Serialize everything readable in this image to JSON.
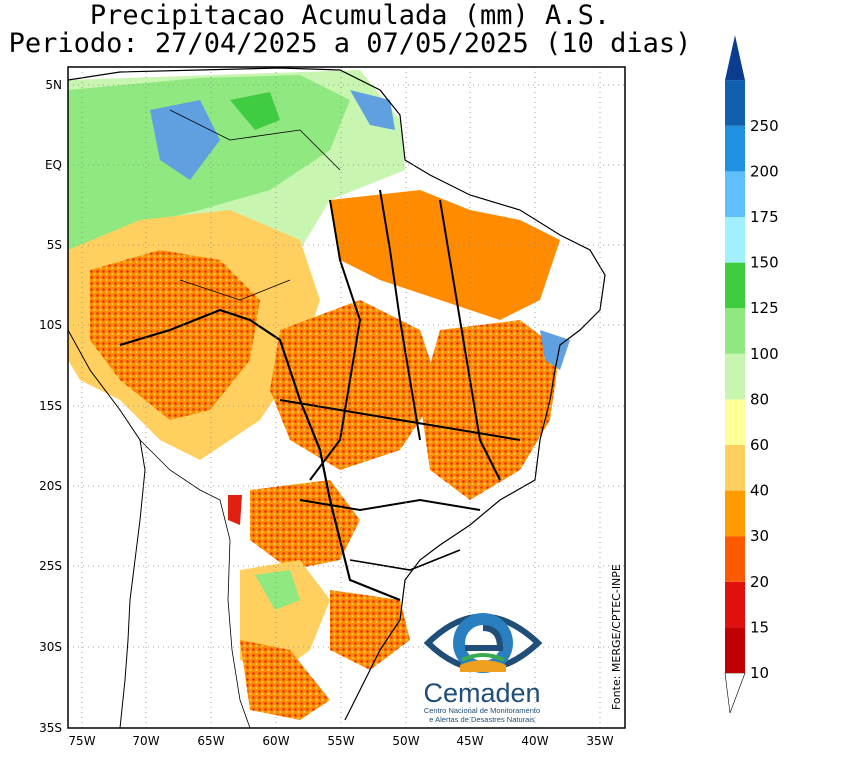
{
  "title": {
    "line1": "Precipitacao Acumulada (mm) A.S.",
    "line2": "Periodo: 27/04/2025 a 07/05/2025 (10 dias)"
  },
  "axes": {
    "lat_labels": [
      "5N",
      "EQ",
      "5S",
      "10S",
      "15S",
      "20S",
      "25S",
      "30S",
      "35S"
    ],
    "lon_labels": [
      "75W",
      "70W",
      "65W",
      "60W",
      "55W",
      "50W",
      "45W",
      "40W",
      "35W"
    ]
  },
  "colorbar": {
    "levels": [
      "10",
      "15",
      "20",
      "30",
      "40",
      "60",
      "80",
      "100",
      "125",
      "150",
      "175",
      "200",
      "250"
    ],
    "colors": [
      "#c00000",
      "#e01010",
      "#ff5a00",
      "#ff9a00",
      "#ffd060",
      "#ffff99",
      "#c8f5b0",
      "#90e880",
      "#40cc40",
      "#a0f0ff",
      "#60c0ff",
      "#2090e0",
      "#1060b0",
      "#0a3c90"
    ]
  },
  "source_label": "Fonte: MERGE/CPTEC-INPE",
  "logo": {
    "name": "Cemaden",
    "subtitle_line1": "Centro Nacional de Monitoramento",
    "subtitle_line2": "e Alertas de Desastres Naturais"
  },
  "colors": {
    "heavy_red": "#c00000",
    "red": "#e02010",
    "orange": "#ff8c00",
    "yellow": "#ffd060",
    "light_green": "#c8f5b0",
    "green": "#90e880",
    "blue": "#60a0e0"
  }
}
